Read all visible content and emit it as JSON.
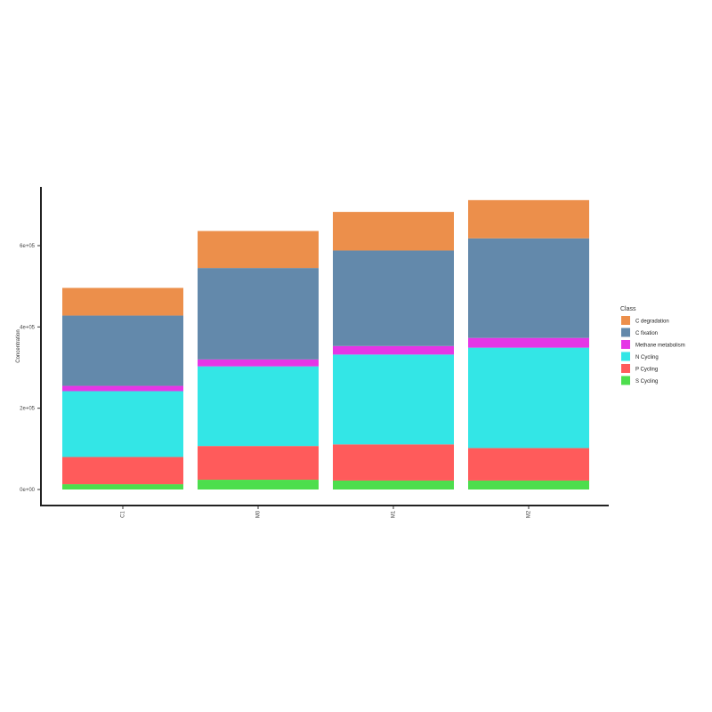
{
  "chart_data": {
    "type": "bar",
    "stacked": true,
    "categories": [
      "C1",
      "M0",
      "M1",
      "M2"
    ],
    "series": [
      {
        "name": "S Cycling",
        "color": "#4DDE4D",
        "values": [
          13000,
          24000,
          22000,
          22000
        ]
      },
      {
        "name": "P Cycling",
        "color": "#FF5B5B",
        "values": [
          67000,
          83000,
          89000,
          80000
        ]
      },
      {
        "name": "N Cycling",
        "color": "#33E6E6",
        "values": [
          162000,
          196000,
          221000,
          247000
        ]
      },
      {
        "name": "Methane metabolism",
        "color": "#E536E6",
        "values": [
          13000,
          17000,
          21000,
          24000
        ]
      },
      {
        "name": "C fixation",
        "color": "#6389AB",
        "values": [
          173000,
          225000,
          235000,
          245000
        ]
      },
      {
        "name": "C degradation",
        "color": "#EC8F4B",
        "values": [
          68000,
          91000,
          95000,
          94000
        ]
      }
    ],
    "ylabel": "Concentration",
    "xlabel": "",
    "ylim": [
      0,
      720000
    ],
    "yticks": [
      0,
      200000,
      400000,
      600000
    ],
    "ytick_labels": [
      "0e+00",
      "2e+05",
      "4e+05",
      "6e+05"
    ],
    "legend": {
      "title": "Class",
      "position": "right"
    },
    "grid": false
  }
}
